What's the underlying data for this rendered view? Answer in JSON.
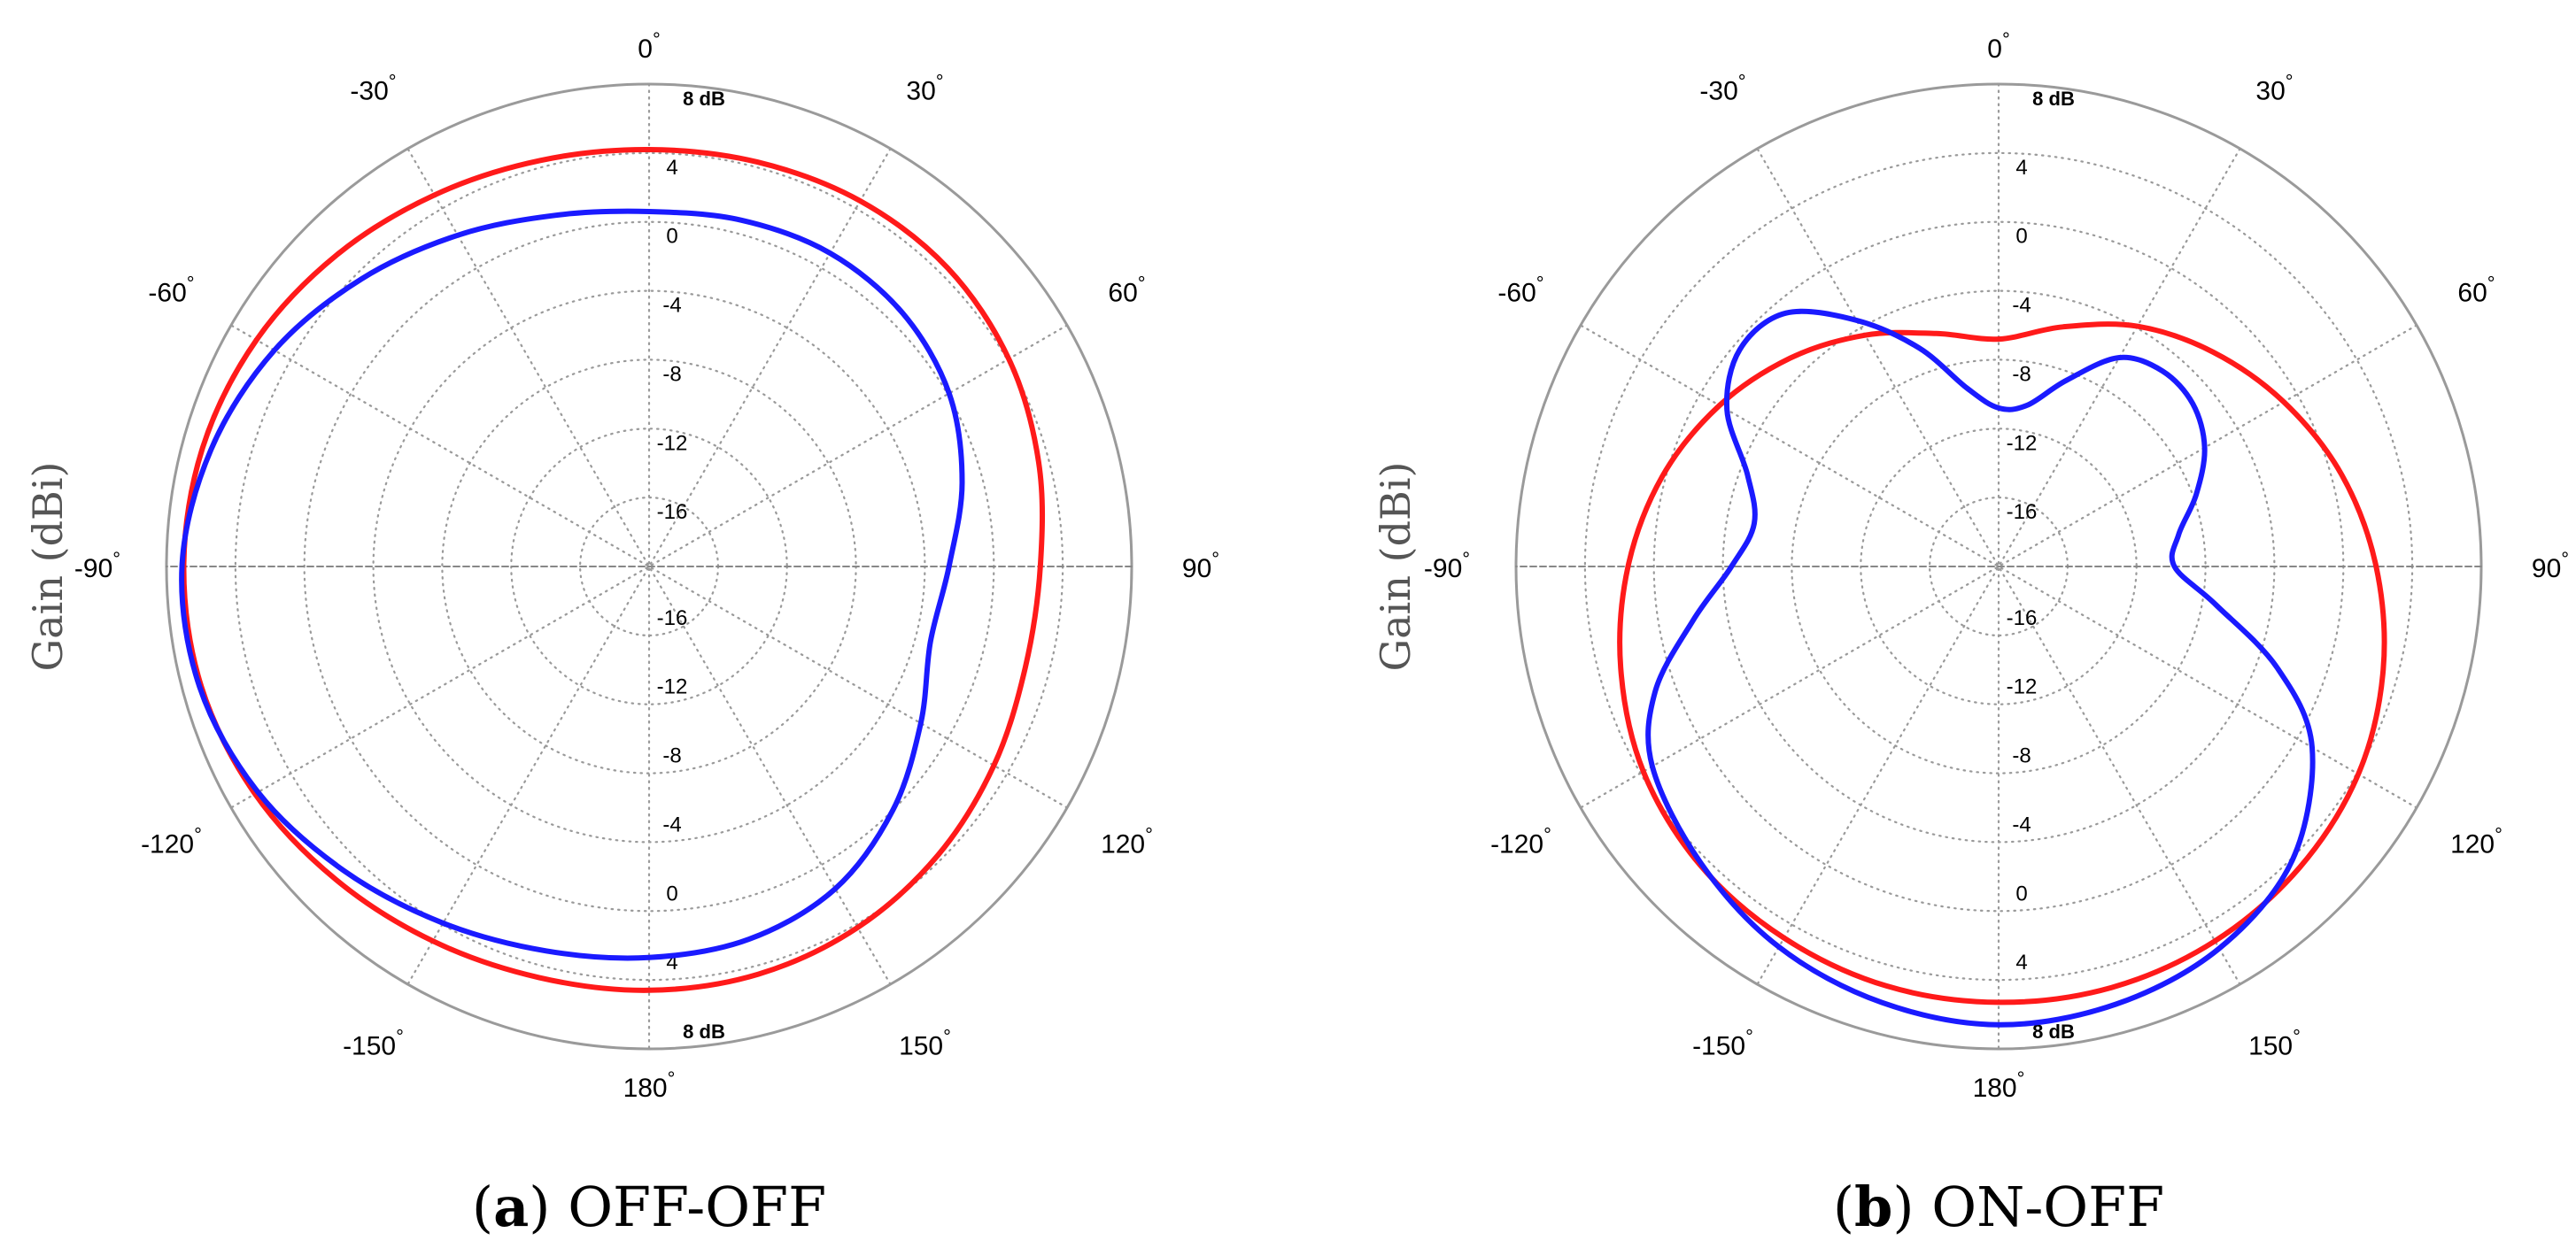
{
  "colors": {
    "red": "#ff1a1a",
    "blue": "#1a1aff",
    "ring": "#9a9a9a",
    "grid": "#9a9a9a"
  },
  "chart_data": [
    {
      "type": "polar",
      "panel_letter": "a",
      "caption": "OFF-OFF",
      "ylabel": "Gain (dBi)",
      "angle_unit": "°",
      "angle_labels": [
        "0",
        "30",
        "60",
        "90",
        "120",
        "150",
        "180",
        "-150",
        "-120",
        "-90",
        "-60",
        "-30"
      ],
      "radial_range_db": [
        -20,
        8
      ],
      "radial_ticks_upper": [
        "8 dB",
        "4",
        "0",
        "-4",
        "-8",
        "-12",
        "-16"
      ],
      "radial_ticks_lower": [
        "-16",
        "-12",
        "-8",
        "-4",
        "0",
        "4",
        "8 dB"
      ],
      "series": [
        {
          "name": "red",
          "color": "#ff1a1a",
          "angles_deg": [
            0,
            15,
            30,
            45,
            60,
            75,
            90,
            105,
            120,
            135,
            150,
            165,
            180,
            -165,
            -150,
            -135,
            -120,
            -105,
            -90,
            -75,
            -60,
            -45,
            -30,
            -15
          ],
          "gain_db": [
            4.2,
            4.3,
            4.5,
            4.5,
            4.1,
            3.4,
            2.7,
            2.6,
            3.1,
            3.7,
            4.2,
            4.5,
            4.6,
            4.7,
            5.1,
            5.7,
            6.4,
            6.9,
            7.0,
            6.8,
            6.3,
            5.6,
            4.9,
            4.4
          ]
        },
        {
          "name": "blue",
          "color": "#1a1aff",
          "angles_deg": [
            0,
            15,
            30,
            45,
            60,
            75,
            90,
            105,
            120,
            135,
            150,
            165,
            180,
            -165,
            -150,
            -135,
            -120,
            -105,
            -90,
            -75,
            -60,
            -45,
            -30,
            -15
          ],
          "gain_db": [
            0.6,
            0.8,
            1.0,
            0.8,
            0.1,
            -1.2,
            -2.6,
            -3.1,
            -1.8,
            0.0,
            1.6,
            2.4,
            2.7,
            3.1,
            3.9,
            5.0,
            6.2,
            7.0,
            7.1,
            6.3,
            5.1,
            3.6,
            2.2,
            1.1
          ]
        }
      ]
    },
    {
      "type": "polar",
      "panel_letter": "b",
      "caption": "ON-OFF",
      "ylabel": "Gain (dBi)",
      "angle_unit": "°",
      "angle_labels": [
        "0",
        "30",
        "60",
        "90",
        "120",
        "150",
        "180",
        "-150",
        "-120",
        "-90",
        "-60",
        "-30"
      ],
      "radial_range_db": [
        -20,
        8
      ],
      "radial_ticks_upper": [
        "8 dB",
        "4",
        "0",
        "-4",
        "-8",
        "-12",
        "-16"
      ],
      "radial_ticks_lower": [
        "-16",
        "-12",
        "-8",
        "-4",
        "0",
        "4",
        "8 dB"
      ],
      "series": [
        {
          "name": "red",
          "color": "#ff1a1a",
          "angles_deg": [
            0,
            15,
            30,
            45,
            60,
            75,
            90,
            105,
            120,
            135,
            150,
            165,
            180,
            -165,
            -150,
            -135,
            -120,
            -105,
            -90,
            -75,
            -60,
            -45,
            -30,
            -15
          ],
          "gain_db": [
            -6.8,
            -5.6,
            -3.9,
            -2.4,
            -0.9,
            0.6,
            1.9,
            3.1,
            4.1,
            4.7,
            5.1,
            5.3,
            5.3,
            5.2,
            4.9,
            4.5,
            3.8,
            2.7,
            1.5,
            0.2,
            -1.3,
            -2.9,
            -4.5,
            -6.0
          ]
        },
        {
          "name": "blue",
          "color": "#1a1aff",
          "angles_deg": [
            0,
            10,
            20,
            30,
            40,
            50,
            60,
            70,
            80,
            90,
            100,
            110,
            120,
            135,
            150,
            165,
            180,
            -165,
            -150,
            -135,
            -120,
            -110,
            -100,
            -90,
            -80,
            -70,
            -60,
            -50,
            -40,
            -30,
            -20,
            -10
          ],
          "gain_db": [
            -10.8,
            -10.5,
            -8.5,
            -6.0,
            -5.2,
            -5.3,
            -6.2,
            -7.8,
            -9.4,
            -9.8,
            -7.2,
            -2.8,
            1.0,
            4.1,
            5.6,
            6.3,
            6.6,
            6.2,
            5.5,
            4.4,
            3.2,
            1.2,
            -2.0,
            -4.5,
            -5.6,
            -4.5,
            -1.8,
            -0.4,
            -0.8,
            -3.5,
            -6.5,
            -9.5
          ]
        }
      ]
    }
  ]
}
